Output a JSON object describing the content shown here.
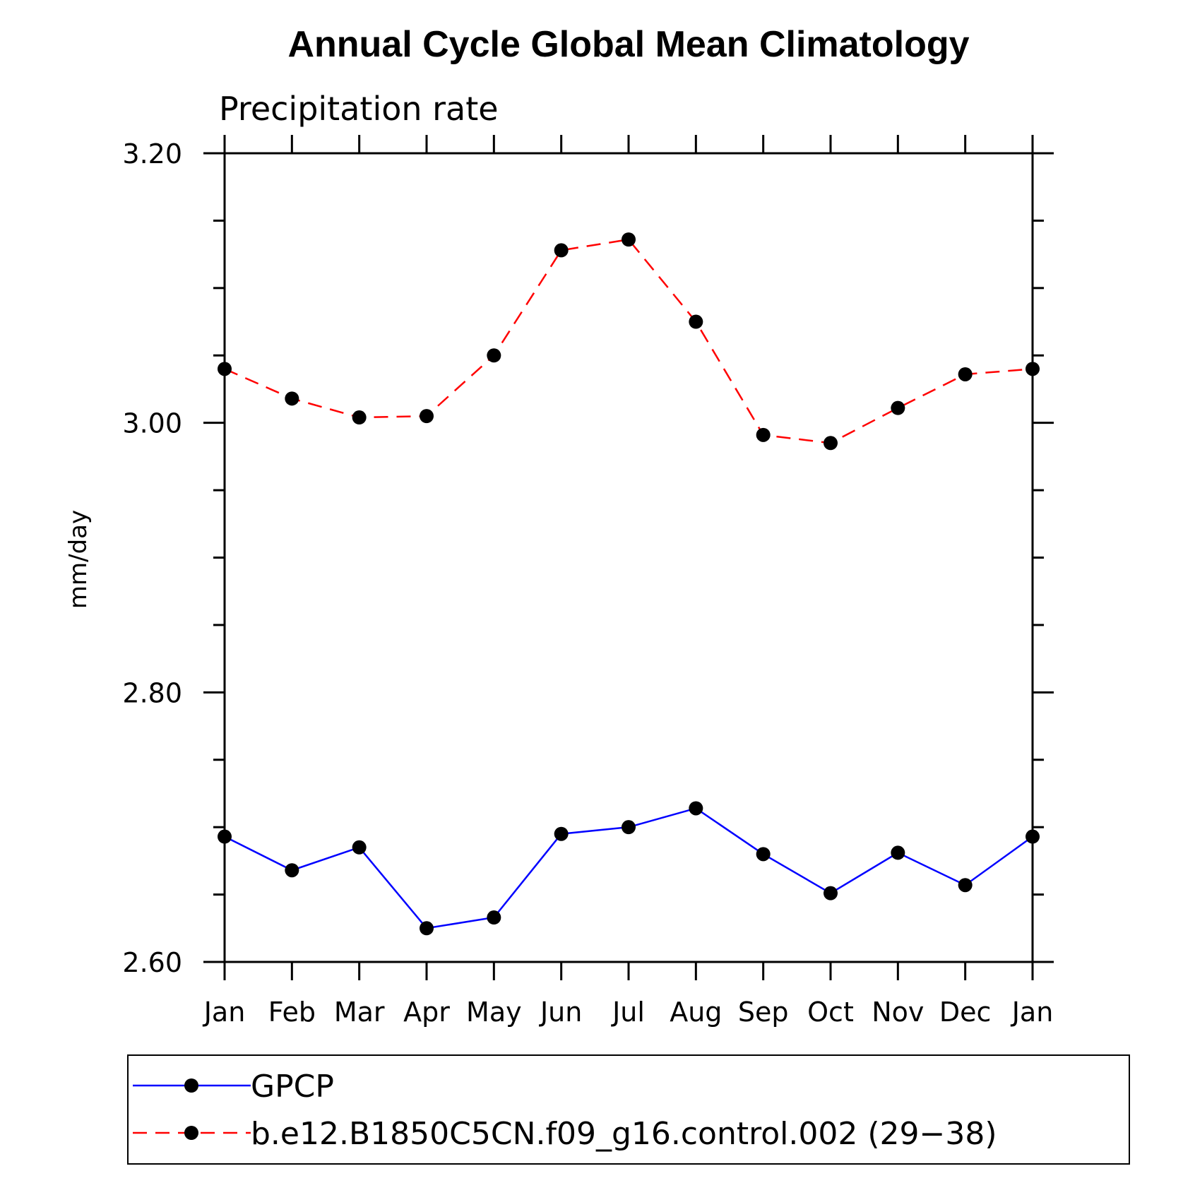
{
  "chart_data": {
    "type": "line",
    "title": "Annual Cycle Global Mean Climatology",
    "subtitle": "Precipitation rate",
    "xlabel": "",
    "ylabel": "mm/day",
    "ylim": [
      2.6,
      3.2
    ],
    "yticks_major": [
      2.6,
      2.8,
      3.0,
      3.2
    ],
    "yticks_major_labels": [
      "2.60",
      "2.80",
      "3.00",
      "3.20"
    ],
    "y_minor_step": 0.05,
    "categories": [
      "Jan",
      "Feb",
      "Mar",
      "Apr",
      "May",
      "Jun",
      "Jul",
      "Aug",
      "Sep",
      "Oct",
      "Nov",
      "Dec",
      "Jan"
    ],
    "series": [
      {
        "name": "GPCP",
        "color": "#0000ff",
        "dash": "solid",
        "values": [
          2.693,
          2.668,
          2.685,
          2.625,
          2.633,
          2.695,
          2.7,
          2.714,
          2.68,
          2.651,
          2.681,
          2.657,
          2.693
        ]
      },
      {
        "name": "b.e12.B1850C5CN.f09_g16.control.002 (29−38)",
        "color": "#ff0000",
        "dash": "dashed",
        "values": [
          3.04,
          3.018,
          3.004,
          3.005,
          3.05,
          3.128,
          3.136,
          3.075,
          2.991,
          2.985,
          3.011,
          3.036,
          3.04
        ]
      }
    ],
    "legend_position": "bottom"
  }
}
